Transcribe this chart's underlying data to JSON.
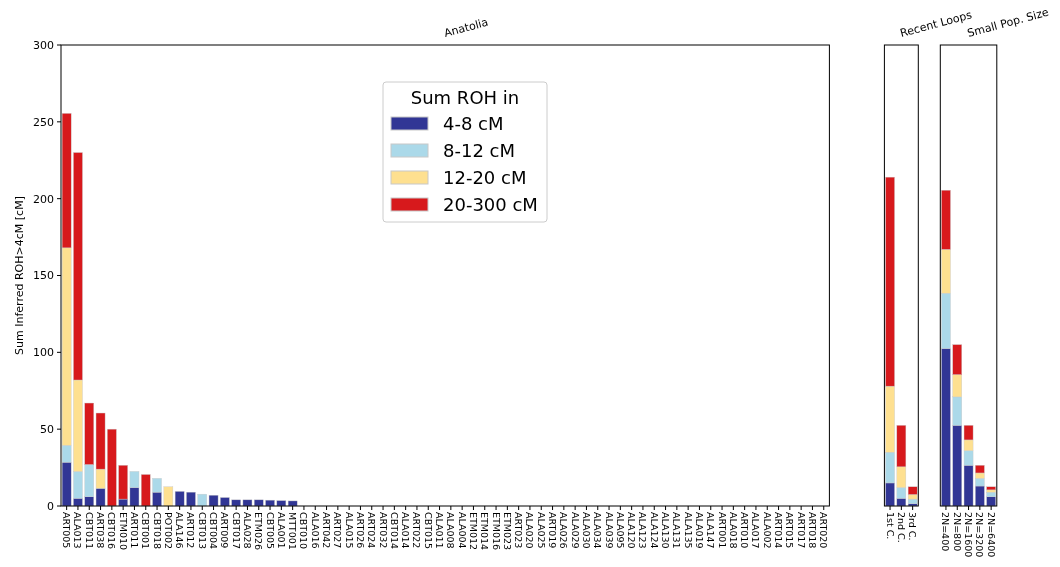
{
  "chart_data": [
    {
      "type": "bar",
      "title": "Anatolia",
      "ylabel": "Sum Inferred ROH>4cM [cM]",
      "stacked": true,
      "legend": "top",
      "legend_title": "Sum ROH in",
      "categories": [
        "ART005",
        "ALA013",
        "CBT011",
        "ART038",
        "CBT016",
        "ETM010",
        "ART011",
        "CBT001",
        "CBT018",
        "POT002",
        "ALA146",
        "ART012",
        "CBT013",
        "CBT004",
        "ART009",
        "CBT017",
        "ALA028",
        "ETM026",
        "CBT005",
        "ALA001",
        "MTT001",
        "CBT010",
        "ALA016",
        "ART042",
        "ART027",
        "ALA015",
        "ART026",
        "ART024",
        "ART032",
        "CBT014",
        "ALA014",
        "ART022",
        "CBT015",
        "ALA011",
        "ALA008",
        "ALA004",
        "ETM012",
        "ETM014",
        "ETM016",
        "ETM023",
        "ART023",
        "ALA020",
        "ALA025",
        "ART019",
        "ALA026",
        "ALA029",
        "ALA030",
        "ALA034",
        "ALA039",
        "ALA095",
        "ALA120",
        "ALA123",
        "ALA124",
        "ALA130",
        "ALA131",
        "ALA135",
        "ALA019",
        "ALA147",
        "ART001",
        "ALA018",
        "ART010",
        "ALA017",
        "ALA002",
        "ART014",
        "ART015",
        "ART017",
        "ART018",
        "ART020"
      ],
      "ylim": [
        0,
        300
      ],
      "yticks": [
        0,
        50,
        100,
        150,
        200,
        250,
        300
      ],
      "series": [
        {
          "name": "4-8 cM",
          "color": "#313695",
          "values": [
            28.5,
            5,
            6,
            11.5,
            0,
            4.5,
            12,
            0,
            9,
            0,
            9.5,
            9,
            0,
            7,
            5.5,
            4,
            4,
            4,
            3.8,
            3.5,
            3.3,
            0,
            0,
            0,
            0,
            0,
            0,
            0,
            0,
            0,
            0,
            0,
            0,
            0,
            0,
            0,
            0,
            0,
            0,
            0,
            0,
            0,
            0,
            0,
            0,
            0,
            0,
            0,
            0,
            0,
            0,
            0,
            0,
            0,
            0,
            0,
            0,
            0,
            0,
            0,
            0,
            0,
            0,
            0,
            0,
            0,
            0,
            0
          ]
        },
        {
          "name": "8-12 cM",
          "color": "#abd9e9",
          "values": [
            11,
            17.5,
            21,
            0,
            0,
            0,
            10.5,
            0,
            9,
            0,
            0,
            0,
            7.7,
            0,
            0,
            0,
            0,
            0,
            0,
            0,
            0,
            0,
            0,
            0,
            0,
            0,
            0,
            0,
            0,
            0,
            0,
            0,
            0,
            0,
            0,
            0,
            0,
            0,
            0,
            0,
            0,
            0,
            0,
            0,
            0,
            0,
            0,
            0,
            0,
            0,
            0,
            0,
            0,
            0,
            0,
            0,
            0,
            0,
            0,
            0,
            0,
            0,
            0,
            0,
            0,
            0,
            0,
            0
          ]
        },
        {
          "name": "12-20 cM",
          "color": "#fee090",
          "values": [
            128.5,
            59.5,
            0,
            12.5,
            0,
            0,
            0,
            0,
            0,
            12.5,
            0,
            0,
            0,
            0,
            0,
            0,
            0,
            0,
            0,
            0,
            0,
            0,
            0,
            0,
            0,
            0,
            0,
            0,
            0,
            0,
            0,
            0,
            0,
            0,
            0,
            0,
            0,
            0,
            0,
            0,
            0,
            0,
            0,
            0,
            0,
            0,
            0,
            0,
            0,
            0,
            0,
            0,
            0,
            0,
            0,
            0,
            0,
            0,
            0,
            0,
            0,
            0,
            0,
            0,
            0,
            0,
            0,
            0
          ]
        },
        {
          "name": "20-300 cM",
          "color": "#d7191c",
          "values": [
            87.5,
            148,
            40,
            36.5,
            50,
            22,
            0,
            20.5,
            0,
            0,
            0,
            0,
            0,
            0,
            0,
            0,
            0,
            0,
            0,
            0,
            0,
            0,
            0,
            0,
            0,
            0,
            0,
            0,
            0,
            0,
            0,
            0,
            0,
            0,
            0,
            0,
            0,
            0,
            0,
            0,
            0,
            0,
            0,
            0,
            0,
            0,
            0,
            0,
            0,
            0,
            0,
            0,
            0,
            0,
            0,
            0,
            0,
            0,
            0,
            0,
            0,
            0,
            0,
            0,
            0,
            0,
            0,
            0
          ]
        }
      ]
    },
    {
      "type": "bar",
      "title": "Recent Loops",
      "stacked": true,
      "tick_labels": "x",
      "categories": [
        "1st C.",
        "2nd C.",
        "3rd C."
      ],
      "ylim": [
        0,
        300
      ],
      "series": [
        {
          "color": "#313695",
          "values": [
            15,
            5,
            1.5
          ]
        },
        {
          "color": "#abd9e9",
          "values": [
            20,
            7,
            3
          ]
        },
        {
          "color": "#fee090",
          "values": [
            43,
            13.5,
            3
          ]
        },
        {
          "color": "#d7191c",
          "values": [
            136,
            27,
            5
          ]
        }
      ]
    },
    {
      "type": "bar",
      "title": "Small Pop. Size",
      "stacked": true,
      "tick_labels": "x",
      "categories": [
        "2N=400",
        "2N=800",
        "2N=1600",
        "2N=3200",
        "2N=6400"
      ],
      "ylim": [
        0,
        300
      ],
      "series": [
        {
          "color": "#313695",
          "values": [
            102.5,
            52.5,
            26.5,
            13,
            6
          ]
        },
        {
          "color": "#abd9e9",
          "values": [
            36,
            18.5,
            9.5,
            5,
            3
          ]
        },
        {
          "color": "#fee090",
          "values": [
            28.5,
            14.5,
            7,
            3.5,
            1.5
          ]
        },
        {
          "color": "#d7191c",
          "values": [
            38.5,
            19.5,
            9.5,
            5,
            2
          ]
        }
      ]
    }
  ]
}
